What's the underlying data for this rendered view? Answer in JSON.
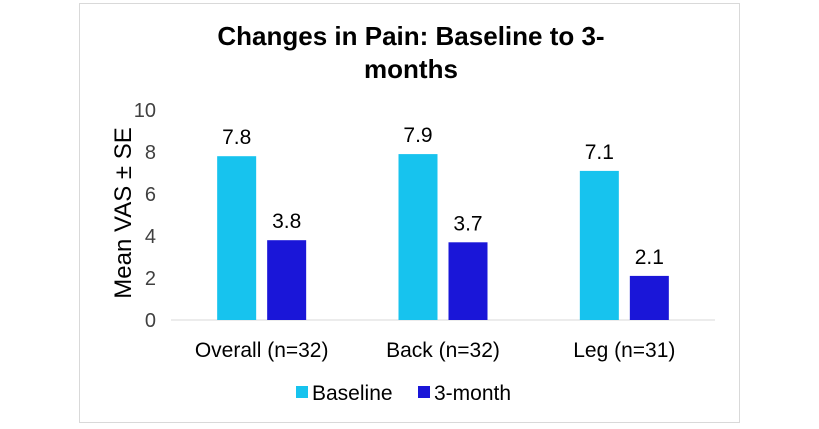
{
  "chart_data": {
    "type": "bar",
    "title_line1": "Changes in Pain: Baseline to 3-",
    "title_line2": "months",
    "xlabel": "",
    "ylabel": "Mean VAS ± SE",
    "ylim": [
      0,
      10
    ],
    "yticks": [
      0,
      2,
      4,
      6,
      8,
      10
    ],
    "categories": [
      "Overall (n=32)",
      "Back (n=32)",
      "Leg (n=31)"
    ],
    "series": [
      {
        "name": "Baseline",
        "color": "#17c3ee",
        "values": [
          7.8,
          7.9,
          7.1
        ],
        "labels": [
          "7.8",
          "7.9",
          "7.1"
        ]
      },
      {
        "name": "3-month",
        "color": "#1a16d8",
        "values": [
          3.8,
          3.7,
          2.1
        ],
        "labels": [
          "3.8",
          "3.7",
          "2.1"
        ]
      }
    ],
    "grid": false,
    "legend_position": "bottom"
  }
}
